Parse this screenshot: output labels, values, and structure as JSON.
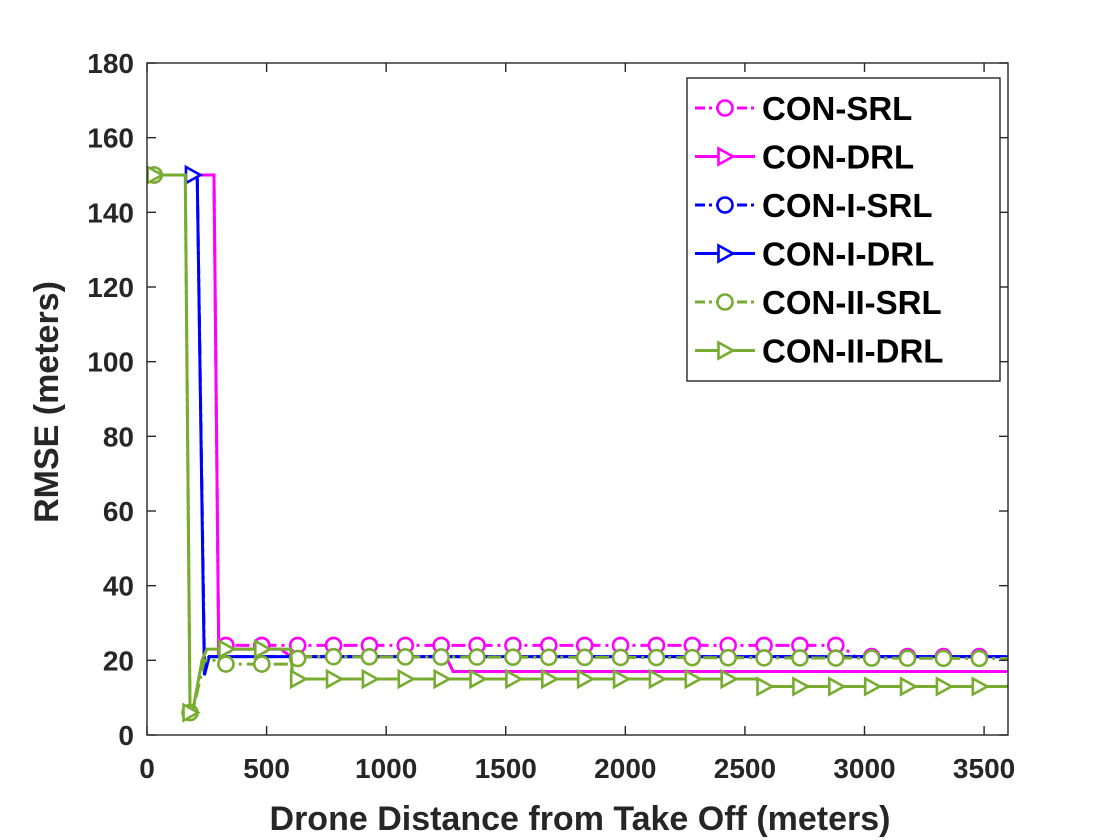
{
  "chart_data": {
    "type": "line",
    "xlabel": "Drone Distance from Take Off (meters)",
    "ylabel": "RMSE (meters)",
    "xlim": [
      0,
      3600
    ],
    "ylim": [
      0,
      180
    ],
    "xticks": [
      0,
      500,
      1000,
      1500,
      2000,
      2500,
      3000,
      3500
    ],
    "yticks": [
      0,
      20,
      40,
      60,
      80,
      100,
      120,
      140,
      160,
      180
    ],
    "grid": false,
    "legend_position": "top-right",
    "series": [
      {
        "name": "CON-SRL",
        "color": "#ff00ff",
        "line_style": "dash-dot",
        "marker": "circle",
        "x": [
          0,
          280,
          300,
          310,
          340,
          600,
          2900,
          2960,
          3600
        ],
        "y": [
          150,
          150,
          22,
          24,
          24,
          24,
          24,
          21,
          21
        ],
        "marker_x": [
          30,
          330,
          480,
          630,
          780,
          930,
          1080,
          1230,
          1380,
          1530,
          1680,
          1830,
          1980,
          2130,
          2280,
          2430,
          2580,
          2730,
          2880,
          3030,
          3180,
          3330,
          3480
        ]
      },
      {
        "name": "CON-DRL",
        "color": "#ff00ff",
        "line_style": "solid",
        "marker": "triangle-right",
        "x": [
          0,
          280,
          300,
          310,
          340,
          480,
          560,
          600,
          1250,
          1280,
          3600
        ],
        "y": [
          150,
          150,
          22,
          23,
          23,
          23,
          23,
          21,
          21,
          17,
          17
        ],
        "marker_x": []
      },
      {
        "name": "CON-I-SRL",
        "color": "#0000ff",
        "line_style": "dash-dot",
        "marker": "circle",
        "x": [
          0,
          210,
          240,
          260,
          300,
          600,
          3600
        ],
        "y": [
          150,
          150,
          20,
          21,
          21,
          21,
          21
        ],
        "marker_x": []
      },
      {
        "name": "CON-I-DRL",
        "color": "#0000ff",
        "line_style": "solid",
        "marker": "triangle-right",
        "x": [
          0,
          210,
          240,
          260,
          300,
          600,
          3600
        ],
        "y": [
          150,
          150,
          16,
          21,
          21,
          21,
          21
        ],
        "marker_x": [
          190
        ]
      },
      {
        "name": "CON-II-SRL",
        "color": "#77ac30",
        "line_style": "dash-dot",
        "marker": "circle",
        "x": [
          0,
          160,
          180,
          190,
          240,
          280,
          320,
          600,
          640,
          3600
        ],
        "y": [
          150,
          150,
          6,
          6,
          20,
          20,
          19,
          19,
          21,
          20.5
        ],
        "marker_x": [
          30,
          180,
          330,
          480,
          630,
          780,
          930,
          1080,
          1230,
          1380,
          1530,
          1680,
          1830,
          1980,
          2130,
          2280,
          2430,
          2580,
          2730,
          2880,
          3030,
          3180,
          3330,
          3480
        ]
      },
      {
        "name": "CON-II-DRL",
        "color": "#77ac30",
        "line_style": "solid",
        "marker": "triangle-right",
        "x": [
          0,
          160,
          180,
          190,
          230,
          250,
          600,
          610,
          2550,
          2560,
          3600
        ],
        "y": [
          150,
          150,
          6,
          6,
          20,
          23,
          23,
          15,
          15,
          13,
          13
        ],
        "marker_x": [
          30,
          180,
          330,
          480,
          630,
          780,
          930,
          1080,
          1230,
          1380,
          1530,
          1680,
          1830,
          1980,
          2130,
          2280,
          2430,
          2580,
          2730,
          2880,
          3030,
          3180,
          3330,
          3480
        ]
      }
    ]
  }
}
